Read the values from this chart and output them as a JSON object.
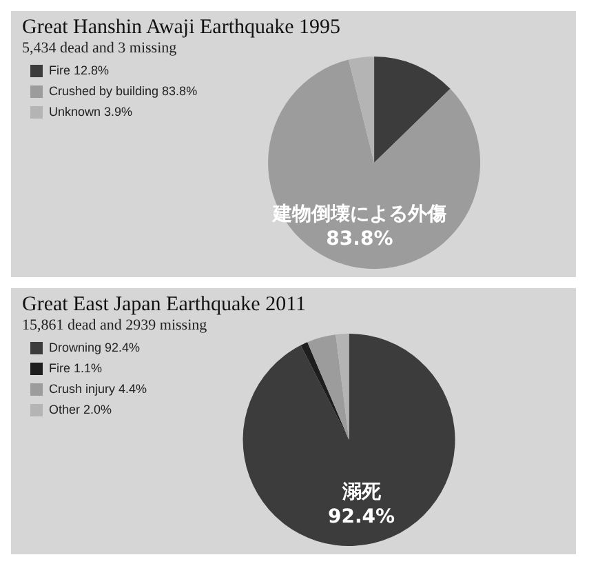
{
  "chart_data": [
    {
      "type": "pie",
      "title": "Great Hanshin Awaji Earthquake 1995",
      "subtitle": "5,434 dead and 3 missing",
      "categories": [
        "Fire 12.8%",
        "Crushed by building 83.8%",
        "Unknown 3.9%"
      ],
      "values": [
        12.8,
        83.8,
        3.9
      ],
      "colors": [
        "#3c3c3c",
        "#9c9c9c",
        "#b4b4b4"
      ],
      "legend": "top left",
      "annotations": [
        "建物倒壊による外傷 83.8%"
      ]
    },
    {
      "type": "pie",
      "title": "Great East Japan Earthquake 2011",
      "subtitle": "15,861 dead and 2939 missing",
      "categories": [
        "Drowning 92.4%",
        "Fire 1.1%",
        "Crush injury 4.4%",
        "Other 2.0%"
      ],
      "values": [
        92.4,
        1.1,
        4.4,
        2.0
      ],
      "colors": [
        "#3c3c3c",
        "#1e1e1e",
        "#9c9c9c",
        "#b4b4b4"
      ],
      "legend": "top left",
      "annotations": [
        "溺死 92.4%"
      ]
    }
  ]
}
